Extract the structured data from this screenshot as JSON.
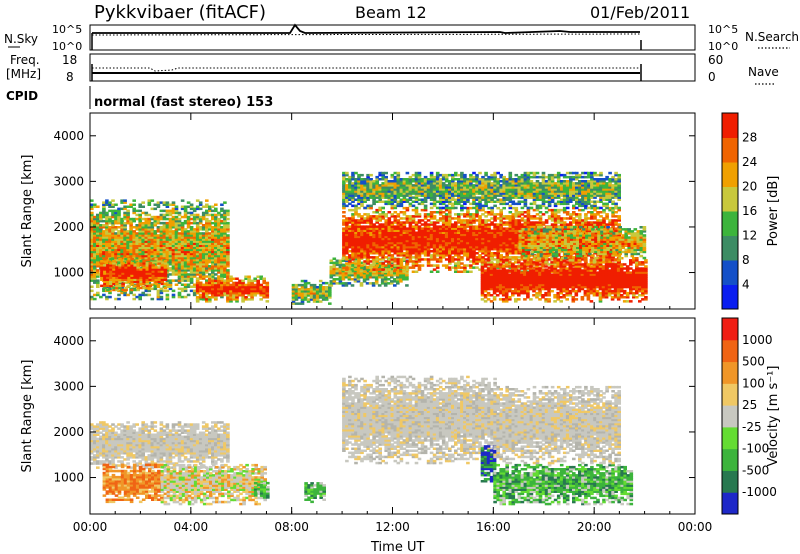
{
  "header": {
    "station": "Pykkvibaer (fitACF)",
    "beam": "Beam 12",
    "date": "01/Feb/2011"
  },
  "param_panels": {
    "nsky": {
      "label": "N.Sky",
      "ticks": [
        "10^5",
        "10^0"
      ]
    },
    "nsearch": {
      "label": "N.Search",
      "ticks": [
        "10^5",
        "10^0"
      ]
    },
    "freq": {
      "label_line1": "Freq.",
      "label_line2": "[MHz]",
      "ticks": [
        "18",
        "8"
      ]
    },
    "nave": {
      "label": "Nave",
      "ticks": [
        "60",
        "0"
      ]
    },
    "cpid": {
      "label": "CPID",
      "mode_text": "normal (fast stereo) 153"
    }
  },
  "chart_data": [
    {
      "type": "heatmap",
      "name": "power",
      "ylabel": "Slant Range [km]",
      "y_ticks": [
        "1000",
        "2000",
        "3000",
        "4000"
      ],
      "ylim": [
        200,
        4500
      ],
      "x_ticks": [
        "00:00",
        "04:00",
        "08:00",
        "12:00",
        "16:00",
        "20:00",
        "00:00"
      ],
      "xlim_hours": [
        0,
        24
      ],
      "data_end_hour": 22,
      "colorbar": {
        "label": "Power [dB]",
        "ticks": [
          "28",
          "24",
          "20",
          "16",
          "12",
          "8",
          "4"
        ],
        "range": [
          0,
          30
        ],
        "colors": [
          "#0a1ef0",
          "#1450c8",
          "#3c8c64",
          "#3cb43c",
          "#c8c83c",
          "#f0a000",
          "#f06400",
          "#f01e00"
        ]
      },
      "regions": [
        {
          "t": [
            0.0,
            5.5
          ],
          "r": [
            400,
            2600
          ],
          "level": 0.55
        },
        {
          "t": [
            0.4,
            3.0
          ],
          "r": [
            600,
            1300
          ],
          "level": 0.8
        },
        {
          "t": [
            4.2,
            7.0
          ],
          "r": [
            350,
            900
          ],
          "level": 0.8
        },
        {
          "t": [
            8.0,
            9.5
          ],
          "r": [
            300,
            800
          ],
          "level": 0.45
        },
        {
          "t": [
            9.5,
            12.5
          ],
          "r": [
            700,
            1300
          ],
          "level": 0.5
        },
        {
          "t": [
            10.0,
            21.0
          ],
          "r": [
            1000,
            2400
          ],
          "level": 0.85
        },
        {
          "t": [
            10.0,
            21.0
          ],
          "r": [
            2400,
            3200
          ],
          "level": 0.4
        },
        {
          "t": [
            15.5,
            22.0
          ],
          "r": [
            350,
            1300
          ],
          "level": 0.95
        },
        {
          "t": [
            17.0,
            22.0
          ],
          "r": [
            1300,
            2000
          ],
          "level": 0.6
        }
      ]
    },
    {
      "type": "heatmap",
      "name": "velocity",
      "ylabel": "Slant Range [km]",
      "y_ticks": [
        "1000",
        "2000",
        "3000",
        "4000"
      ],
      "ylim": [
        200,
        4500
      ],
      "x_ticks": [
        "00:00",
        "04:00",
        "08:00",
        "12:00",
        "16:00",
        "20:00",
        "00:00"
      ],
      "xlabel": "Time UT",
      "xlim_hours": [
        0,
        24
      ],
      "data_end_hour": 22,
      "colorbar": {
        "label": "Velocity [m s⁻¹]",
        "ticks": [
          "1000",
          "500",
          "100",
          "25",
          "-25",
          "-100",
          "-500",
          "-1000"
        ],
        "colors": [
          "#1e28c8",
          "#287850",
          "#3cb43c",
          "#64dc32",
          "#c8c8c0",
          "#f0c864",
          "#f09628",
          "#f06414",
          "#f01e14"
        ]
      },
      "regions": [
        {
          "t": [
            0.0,
            5.5
          ],
          "r": [
            1200,
            2200
          ],
          "v": "gray"
        },
        {
          "t": [
            0.5,
            2.8
          ],
          "r": [
            450,
            1300
          ],
          "v": "orange"
        },
        {
          "t": [
            2.8,
            7.0
          ],
          "r": [
            400,
            1300
          ],
          "v": "mixed"
        },
        {
          "t": [
            6.5,
            7.0
          ],
          "r": [
            500,
            900
          ],
          "v": "green"
        },
        {
          "t": [
            8.5,
            9.3
          ],
          "r": [
            450,
            900
          ],
          "v": "green"
        },
        {
          "t": [
            10.0,
            16.0
          ],
          "r": [
            1300,
            3200
          ],
          "v": "gray"
        },
        {
          "t": [
            15.5,
            16.0
          ],
          "r": [
            900,
            1700
          ],
          "v": "blue"
        },
        {
          "t": [
            16.0,
            21.5
          ],
          "r": [
            400,
            1300
          ],
          "v": "green"
        },
        {
          "t": [
            16.0,
            21.0
          ],
          "r": [
            1300,
            3000
          ],
          "v": "gray"
        }
      ]
    }
  ]
}
